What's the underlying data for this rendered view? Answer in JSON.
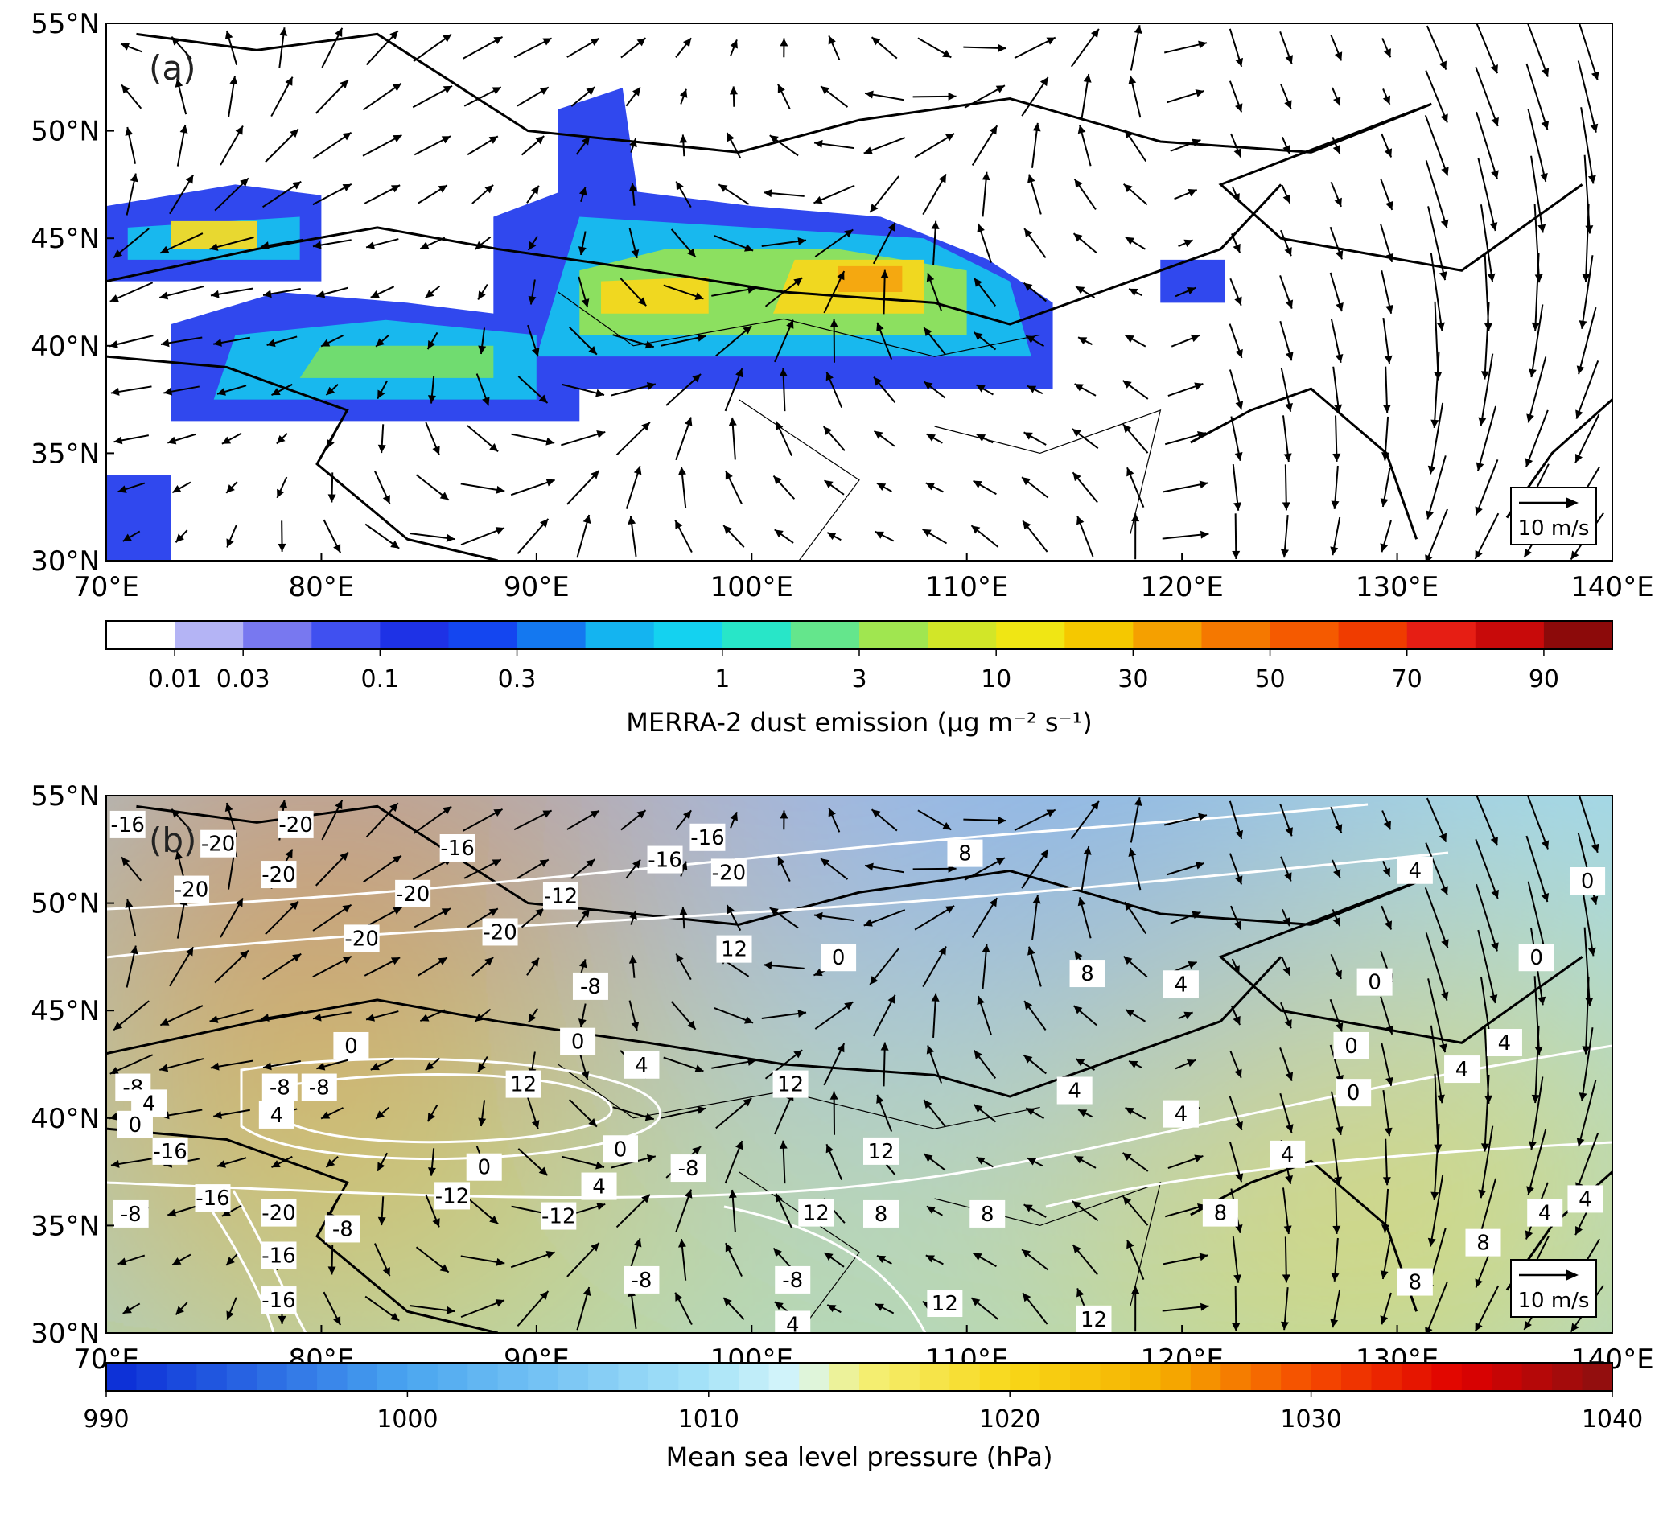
{
  "panels": [
    {
      "label": "(a)",
      "xticks": [
        "70°E",
        "80°E",
        "90°E",
        "100°E",
        "110°E",
        "120°E",
        "130°E",
        "140°E"
      ],
      "yticks": [
        "55°N",
        "50°N",
        "45°N",
        "40°N",
        "35°N",
        "30°N"
      ],
      "scale_label": "10 m/s",
      "colorbar": {
        "label": "MERRA-2 dust emission (μg m⁻² s⁻¹)",
        "ticks": [
          "0.01",
          "0.03",
          "0.1",
          "0.3",
          "1",
          "3",
          "10",
          "30",
          "50",
          "70",
          "90"
        ],
        "colors": [
          "#ffffff",
          "#b4b4f5",
          "#7878f0",
          "#4050f0",
          "#1e32e6",
          "#1446f0",
          "#1478f0",
          "#14b4f0",
          "#14d2f0",
          "#28e6c8",
          "#64e68c",
          "#a0e650",
          "#d2e628",
          "#f0e614",
          "#f5c800",
          "#f5a000",
          "#f57800",
          "#f55a00",
          "#f03c00",
          "#e61e14",
          "#c80a0a",
          "#8c0a0a"
        ]
      }
    },
    {
      "label": "(b)",
      "xticks": [
        "70°E",
        "80°E",
        "90°E",
        "100°E",
        "110°E",
        "120°E",
        "130°E",
        "140°E"
      ],
      "yticks": [
        "55°N",
        "50°N",
        "45°N",
        "40°N",
        "35°N",
        "30°N"
      ],
      "scale_label": "10 m/s",
      "colorbar": {
        "label": "Mean sea level pressure (hPa)",
        "range": [
          990,
          1040
        ],
        "ticks": [
          990,
          1000,
          1010,
          1020,
          1030,
          1040
        ],
        "color_stops": [
          {
            "value": 990,
            "color": "#0a2bd6"
          },
          {
            "value": 1000,
            "color": "#4aa6f0"
          },
          {
            "value": 1010,
            "color": "#a8e4f8"
          },
          {
            "value": 1013,
            "color": "#d8f6fa"
          },
          {
            "value": 1015,
            "color": "#f3f07a"
          },
          {
            "value": 1020,
            "color": "#f8d818"
          },
          {
            "value": 1025,
            "color": "#f5b000"
          },
          {
            "value": 1030,
            "color": "#f54a00"
          },
          {
            "value": 1035,
            "color": "#e00000"
          },
          {
            "value": 1040,
            "color": "#8a1010"
          }
        ]
      },
      "contour_labels": [
        "-16",
        "-20",
        "-20",
        "-16",
        "-20",
        "-20",
        "-20",
        "-12",
        "-16",
        "-16",
        "-20",
        "-20",
        "-20",
        "12",
        "-8",
        "8",
        "0",
        "8",
        "4",
        "0",
        "0",
        "0",
        "0",
        "4",
        "12",
        "12",
        "-8",
        "-8",
        "-8",
        "4",
        "0",
        "4",
        "-16",
        "0",
        "-8",
        "0",
        "-12",
        "4",
        "12",
        "-12",
        "-16",
        "-20",
        "-8",
        "12",
        "8",
        "8",
        "-8",
        "-16",
        "-16",
        "-8",
        "-8",
        "4",
        "12",
        "12",
        "4",
        "4",
        "4",
        "8",
        "0",
        "0",
        "4",
        "4",
        "4",
        "0",
        "8",
        "8",
        "4",
        "4"
      ]
    }
  ]
}
